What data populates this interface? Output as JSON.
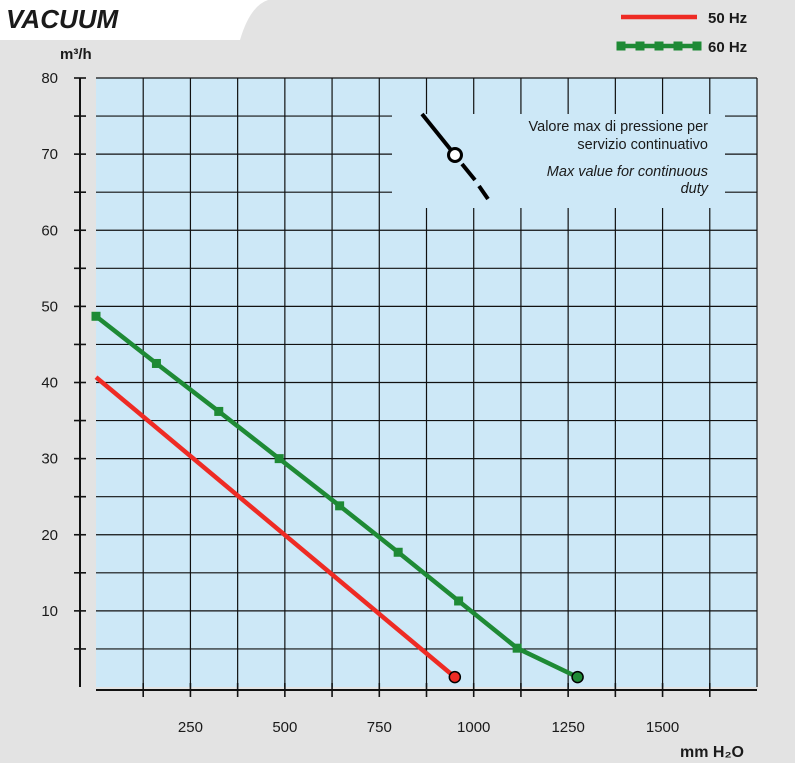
{
  "chart_data": {
    "type": "line",
    "title": "VACUUM",
    "xlabel": "mm H₂O",
    "ylabel": "m³/h",
    "xlim": [
      0,
      1750
    ],
    "ylim": [
      0,
      80
    ],
    "x_ticks": [
      250,
      500,
      750,
      1000,
      1250,
      1500
    ],
    "x_tick_labels": [
      "250",
      "500",
      "750",
      "1000",
      "1250",
      "1500"
    ],
    "y_ticks": [
      10,
      20,
      30,
      40,
      50,
      60,
      70,
      80
    ],
    "y_tick_labels": [
      "10",
      "20",
      "30",
      "40",
      "50",
      "60",
      "70",
      "80"
    ],
    "grid": true,
    "legend": "top-right",
    "series": [
      {
        "name": "50 Hz",
        "color": "#ee2b24",
        "x": [
          0,
          950
        ],
        "y": [
          40.7,
          1.3
        ],
        "markers": false,
        "end_marker": true
      },
      {
        "name": "60 Hz",
        "color": "#1e8a35",
        "x": [
          0,
          160,
          325,
          485,
          645,
          800,
          960,
          1115,
          1275
        ],
        "y": [
          48.7,
          42.5,
          36.2,
          30.0,
          23.8,
          17.7,
          11.3,
          5.1,
          1.3
        ],
        "markers": true,
        "end_marker": true
      }
    ],
    "annotation": {
      "text_it_1": "Valore max di pressione per",
      "text_it_2": "servizio continuativo",
      "text_en_1": "Max value for continuous",
      "text_en_2": "duty"
    }
  }
}
